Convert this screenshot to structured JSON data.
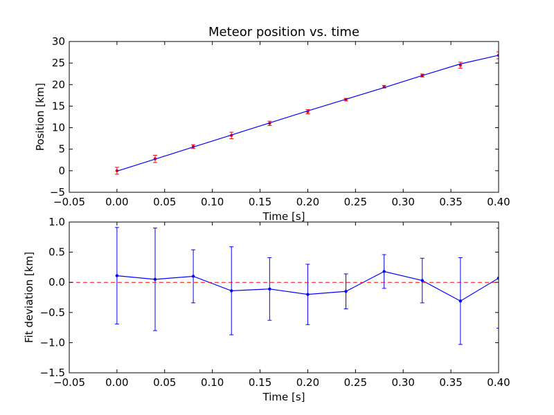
{
  "chart_data": [
    {
      "type": "line",
      "title": "Meteor position vs. time",
      "xlabel": "Time [s]",
      "ylabel": "Position [km]",
      "xlim": [
        -0.05,
        0.4
      ],
      "ylim": [
        -5,
        30
      ],
      "xticks": [
        "−0.05",
        "0.00",
        "0.05",
        "0.10",
        "0.15",
        "0.20",
        "0.25",
        "0.30",
        "0.35",
        "0.40"
      ],
      "yticks": [
        "−5",
        "0",
        "5",
        "10",
        "15",
        "20",
        "25",
        "30"
      ],
      "grid": false,
      "colors": {
        "fit": "#0000ff",
        "data": "#ff0000"
      },
      "series": [
        {
          "kind": "errorbar-points",
          "x": [
            0.0,
            0.04,
            0.08,
            0.12,
            0.16,
            0.2,
            0.24,
            0.28,
            0.32,
            0.36,
            0.4
          ],
          "y": [
            0.0,
            2.75,
            5.6,
            8.2,
            11.0,
            13.7,
            16.5,
            19.5,
            22.1,
            24.5,
            26.8
          ],
          "yerr": [
            0.8,
            0.85,
            0.45,
            0.75,
            0.5,
            0.5,
            0.3,
            0.3,
            0.35,
            0.7,
            0.8
          ]
        },
        {
          "kind": "fit-line",
          "x": [
            0.0,
            0.04,
            0.08,
            0.12,
            0.16,
            0.2,
            0.24,
            0.28,
            0.32,
            0.36,
            0.4
          ],
          "y": [
            -0.1,
            2.7,
            5.5,
            8.3,
            11.1,
            13.9,
            16.6,
            19.3,
            22.1,
            24.8,
            26.8
          ]
        }
      ]
    },
    {
      "type": "line",
      "title": "",
      "xlabel": "Time [s]",
      "ylabel": "Fit deviation [km]",
      "xlim": [
        -0.05,
        0.4
      ],
      "ylim": [
        -1.5,
        1.0
      ],
      "xticks": [
        "−0.05",
        "0.00",
        "0.05",
        "0.10",
        "0.15",
        "0.20",
        "0.25",
        "0.30",
        "0.35",
        "0.40"
      ],
      "yticks": [
        "−1.5",
        "−1.0",
        "−0.5",
        "0.0",
        "0.5",
        "1.0"
      ],
      "grid": false,
      "colors": {
        "deviation": "#0000ff",
        "zero": "#ff0000"
      },
      "series": [
        {
          "kind": "errorbar-line",
          "x": [
            0.0,
            0.04,
            0.08,
            0.12,
            0.16,
            0.2,
            0.24,
            0.28,
            0.32,
            0.36,
            0.4
          ],
          "y": [
            0.11,
            0.05,
            0.1,
            -0.14,
            -0.11,
            -0.2,
            -0.15,
            0.18,
            0.03,
            -0.31,
            0.07
          ],
          "yerr": [
            0.8,
            0.85,
            0.44,
            0.73,
            0.52,
            0.5,
            0.29,
            0.28,
            0.37,
            0.72,
            0.83
          ]
        },
        {
          "kind": "reference-line",
          "y": 0.0,
          "style": "dashed"
        }
      ]
    }
  ]
}
